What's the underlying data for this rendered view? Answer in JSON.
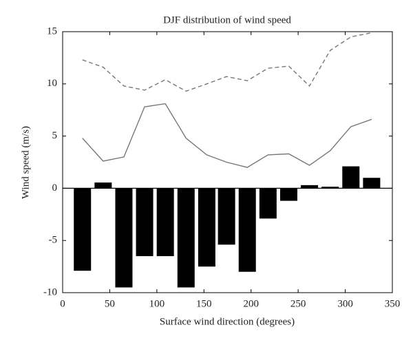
{
  "chart_data": {
    "type": "bar",
    "title": "DJF distribution of wind speed",
    "xlabel": "Surface wind direction (degrees)",
    "ylabel": "Wind speed (m/s)",
    "x": [
      21,
      43,
      65,
      87,
      109,
      131,
      153,
      174,
      196,
      218,
      240,
      262,
      284,
      306,
      328
    ],
    "series": [
      {
        "type": "bar",
        "color": "#000000",
        "values": [
          -7.9,
          0.55,
          -9.5,
          -6.5,
          -6.5,
          -9.5,
          -7.5,
          -5.4,
          -8.0,
          -2.9,
          -1.2,
          0.3,
          0.15,
          2.1,
          1.0
        ]
      },
      {
        "type": "line",
        "color": "#777777",
        "style": "solid",
        "values": [
          4.8,
          2.6,
          3.0,
          7.8,
          8.1,
          4.8,
          3.2,
          2.5,
          2.0,
          3.2,
          3.3,
          2.2,
          3.6,
          5.9,
          6.6
        ]
      },
      {
        "type": "line",
        "color": "#777777",
        "style": "dashed",
        "values": [
          12.3,
          11.6,
          9.8,
          9.4,
          10.4,
          9.3,
          10.0,
          10.7,
          10.3,
          11.5,
          11.7,
          9.8,
          13.2,
          14.5,
          14.9
        ]
      }
    ],
    "xlim": [
      0,
      350
    ],
    "xticks": [
      0,
      50,
      100,
      150,
      200,
      250,
      300,
      350
    ],
    "ylim": [
      -10,
      15
    ],
    "yticks": [
      -10,
      -5,
      0,
      5,
      10,
      15
    ],
    "grid": false
  }
}
